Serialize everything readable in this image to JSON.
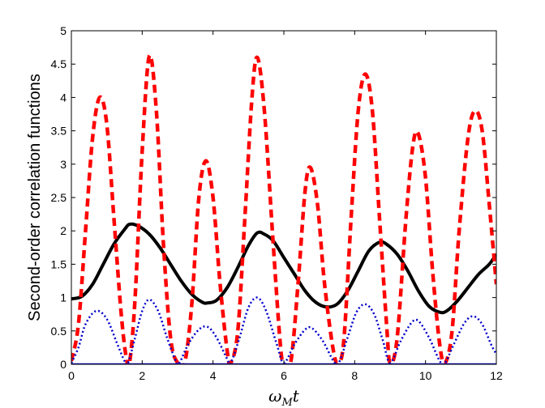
{
  "chart_data": {
    "type": "line",
    "title": "",
    "xlabel_main": "ω",
    "xlabel_sub": "M",
    "xlabel_suffix": "t",
    "ylabel": "Second-order correlation functions",
    "xlim": [
      0,
      12
    ],
    "ylim": [
      0,
      5
    ],
    "xticks": [
      "0",
      "2",
      "4",
      "6",
      "8",
      "10",
      "12"
    ],
    "yticks": [
      "0",
      "0.5",
      "1",
      "1.5",
      "2",
      "2.5",
      "3",
      "3.5",
      "4",
      "4.5",
      "5"
    ],
    "grid": false,
    "legend": "none",
    "series": [
      {
        "style": "solid",
        "color": "#000000",
        "points": [
          [
            0,
            0.98
          ],
          [
            0.3,
            1.02
          ],
          [
            0.6,
            1.2
          ],
          [
            0.9,
            1.5
          ],
          [
            1.2,
            1.8
          ],
          [
            1.5,
            2.02
          ],
          [
            1.65,
            2.1
          ],
          [
            1.9,
            2.07
          ],
          [
            2.2,
            1.95
          ],
          [
            2.5,
            1.75
          ],
          [
            2.8,
            1.5
          ],
          [
            3.1,
            1.25
          ],
          [
            3.4,
            1.05
          ],
          [
            3.7,
            0.93
          ],
          [
            3.85,
            0.92
          ],
          [
            4.1,
            0.96
          ],
          [
            4.4,
            1.15
          ],
          [
            4.7,
            1.45
          ],
          [
            5.0,
            1.78
          ],
          [
            5.25,
            1.97
          ],
          [
            5.45,
            1.95
          ],
          [
            5.7,
            1.85
          ],
          [
            6.0,
            1.6
          ],
          [
            6.3,
            1.35
          ],
          [
            6.6,
            1.1
          ],
          [
            6.9,
            0.93
          ],
          [
            7.2,
            0.86
          ],
          [
            7.5,
            0.9
          ],
          [
            7.8,
            1.1
          ],
          [
            8.1,
            1.4
          ],
          [
            8.4,
            1.7
          ],
          [
            8.7,
            1.83
          ],
          [
            8.9,
            1.8
          ],
          [
            9.2,
            1.65
          ],
          [
            9.5,
            1.4
          ],
          [
            9.8,
            1.1
          ],
          [
            10.1,
            0.87
          ],
          [
            10.4,
            0.78
          ],
          [
            10.6,
            0.8
          ],
          [
            10.9,
            0.95
          ],
          [
            11.2,
            1.15
          ],
          [
            11.5,
            1.35
          ],
          [
            11.8,
            1.5
          ],
          [
            12.0,
            1.65
          ]
        ]
      },
      {
        "style": "dashed",
        "color": "#ff0000",
        "points": [
          [
            0,
            0.05
          ],
          [
            0.2,
            0.6
          ],
          [
            0.4,
            2.0
          ],
          [
            0.6,
            3.4
          ],
          [
            0.8,
            4.0
          ],
          [
            1.0,
            3.6
          ],
          [
            1.2,
            2.2
          ],
          [
            1.4,
            0.8
          ],
          [
            1.55,
            0.1
          ],
          [
            1.65,
            0.05
          ],
          [
            1.8,
            1.0
          ],
          [
            2.0,
            3.2
          ],
          [
            2.2,
            4.62
          ],
          [
            2.4,
            3.8
          ],
          [
            2.6,
            1.8
          ],
          [
            2.8,
            0.4
          ],
          [
            3.0,
            0.02
          ],
          [
            3.2,
            0.02
          ],
          [
            3.4,
            0.9
          ],
          [
            3.6,
            2.5
          ],
          [
            3.8,
            3.05
          ],
          [
            4.0,
            2.5
          ],
          [
            4.2,
            1.2
          ],
          [
            4.4,
            0.2
          ],
          [
            4.5,
            0.02
          ],
          [
            4.7,
            0.5
          ],
          [
            4.9,
            2.2
          ],
          [
            5.1,
            4.0
          ],
          [
            5.25,
            4.6
          ],
          [
            5.45,
            3.8
          ],
          [
            5.7,
            1.8
          ],
          [
            5.9,
            0.3
          ],
          [
            6.0,
            0.02
          ],
          [
            6.2,
            0.05
          ],
          [
            6.4,
            1.2
          ],
          [
            6.6,
            2.6
          ],
          [
            6.75,
            2.95
          ],
          [
            6.95,
            2.4
          ],
          [
            7.15,
            1.2
          ],
          [
            7.4,
            0.2
          ],
          [
            7.55,
            0.02
          ],
          [
            7.7,
            0.4
          ],
          [
            7.9,
            2.2
          ],
          [
            8.1,
            3.8
          ],
          [
            8.3,
            4.35
          ],
          [
            8.5,
            3.8
          ],
          [
            8.7,
            2.2
          ],
          [
            8.9,
            0.6
          ],
          [
            9.0,
            0.02
          ],
          [
            9.2,
            0.4
          ],
          [
            9.45,
            2.2
          ],
          [
            9.65,
            3.3
          ],
          [
            9.8,
            3.45
          ],
          [
            10.0,
            2.8
          ],
          [
            10.2,
            1.4
          ],
          [
            10.4,
            0.3
          ],
          [
            10.55,
            0.02
          ],
          [
            10.75,
            0.5
          ],
          [
            10.95,
            2.0
          ],
          [
            11.2,
            3.4
          ],
          [
            11.4,
            3.8
          ],
          [
            11.6,
            3.5
          ],
          [
            11.8,
            2.4
          ],
          [
            12.0,
            1.2
          ]
        ]
      },
      {
        "style": "dotted",
        "color": "#0000cc",
        "points": [
          [
            0,
            0.02
          ],
          [
            0.2,
            0.25
          ],
          [
            0.4,
            0.6
          ],
          [
            0.7,
            0.8
          ],
          [
            1.0,
            0.68
          ],
          [
            1.3,
            0.3
          ],
          [
            1.5,
            0.05
          ],
          [
            1.6,
            0.02
          ],
          [
            1.8,
            0.4
          ],
          [
            2.0,
            0.8
          ],
          [
            2.2,
            0.97
          ],
          [
            2.45,
            0.8
          ],
          [
            2.7,
            0.4
          ],
          [
            2.95,
            0.05
          ],
          [
            3.05,
            0.02
          ],
          [
            3.3,
            0.3
          ],
          [
            3.6,
            0.52
          ],
          [
            3.85,
            0.56
          ],
          [
            4.1,
            0.4
          ],
          [
            4.4,
            0.08
          ],
          [
            4.5,
            0.02
          ],
          [
            4.75,
            0.4
          ],
          [
            5.0,
            0.85
          ],
          [
            5.25,
            1.0
          ],
          [
            5.5,
            0.8
          ],
          [
            5.8,
            0.3
          ],
          [
            6.0,
            0.02
          ],
          [
            6.3,
            0.3
          ],
          [
            6.6,
            0.52
          ],
          [
            6.8,
            0.54
          ],
          [
            7.1,
            0.35
          ],
          [
            7.4,
            0.05
          ],
          [
            7.55,
            0.02
          ],
          [
            7.8,
            0.4
          ],
          [
            8.05,
            0.78
          ],
          [
            8.3,
            0.9
          ],
          [
            8.55,
            0.75
          ],
          [
            8.8,
            0.35
          ],
          [
            9.0,
            0.02
          ],
          [
            9.3,
            0.35
          ],
          [
            9.6,
            0.62
          ],
          [
            9.8,
            0.65
          ],
          [
            10.1,
            0.4
          ],
          [
            10.4,
            0.05
          ],
          [
            10.55,
            0.02
          ],
          [
            10.8,
            0.3
          ],
          [
            11.1,
            0.62
          ],
          [
            11.35,
            0.72
          ],
          [
            11.6,
            0.6
          ],
          [
            11.85,
            0.3
          ],
          [
            12.0,
            0.15
          ]
        ]
      },
      {
        "style": "solid-thin",
        "color": "#0000cc",
        "points": [
          [
            0,
            0.0
          ],
          [
            12,
            0.0
          ]
        ]
      }
    ]
  }
}
